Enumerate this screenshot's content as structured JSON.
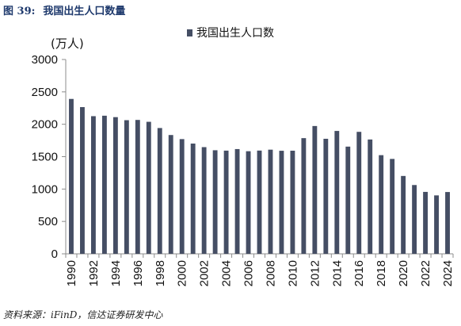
{
  "figure": {
    "number": "图 39:",
    "title": "我国出生人口数量"
  },
  "source": "资料来源：iFinD，信达证券研发中心",
  "chart_data": {
    "type": "bar",
    "title": "",
    "ylabel": "(万人)",
    "xlabel": "",
    "legend": {
      "position": "top-center",
      "entries": [
        "我国出生人口数"
      ]
    },
    "ylim": [
      0,
      3000
    ],
    "yticks": [
      0,
      500,
      1000,
      1500,
      2000,
      2500,
      3000
    ],
    "grid": false,
    "colors": {
      "bar": "#454e64",
      "axis": "#8c8c8c"
    },
    "x_tick_labels": [
      "1990",
      "1992",
      "1994",
      "1996",
      "1998",
      "2000",
      "2002",
      "2004",
      "2006",
      "2008",
      "2010",
      "2012",
      "2014",
      "2016",
      "2018",
      "2020",
      "2022",
      "2024"
    ],
    "categories": [
      "1990",
      "1991",
      "1992",
      "1993",
      "1994",
      "1995",
      "1996",
      "1997",
      "1998",
      "1999",
      "2000",
      "2001",
      "2002",
      "2003",
      "2004",
      "2005",
      "2006",
      "2007",
      "2008",
      "2009",
      "2010",
      "2011",
      "2012",
      "2013",
      "2014",
      "2015",
      "2016",
      "2017",
      "2018",
      "2019",
      "2020",
      "2021",
      "2022",
      "2023",
      "2024"
    ],
    "series": [
      {
        "name": "我国出生人口数",
        "values": [
          2391,
          2265,
          2125,
          2132,
          2110,
          2063,
          2067,
          2038,
          1942,
          1834,
          1771,
          1702,
          1647,
          1599,
          1593,
          1617,
          1584,
          1594,
          1608,
          1591,
          1592,
          1786,
          1973,
          1776,
          1897,
          1655,
          1883,
          1765,
          1523,
          1465,
          1202,
          1062,
          956,
          902,
          954
        ]
      }
    ]
  }
}
